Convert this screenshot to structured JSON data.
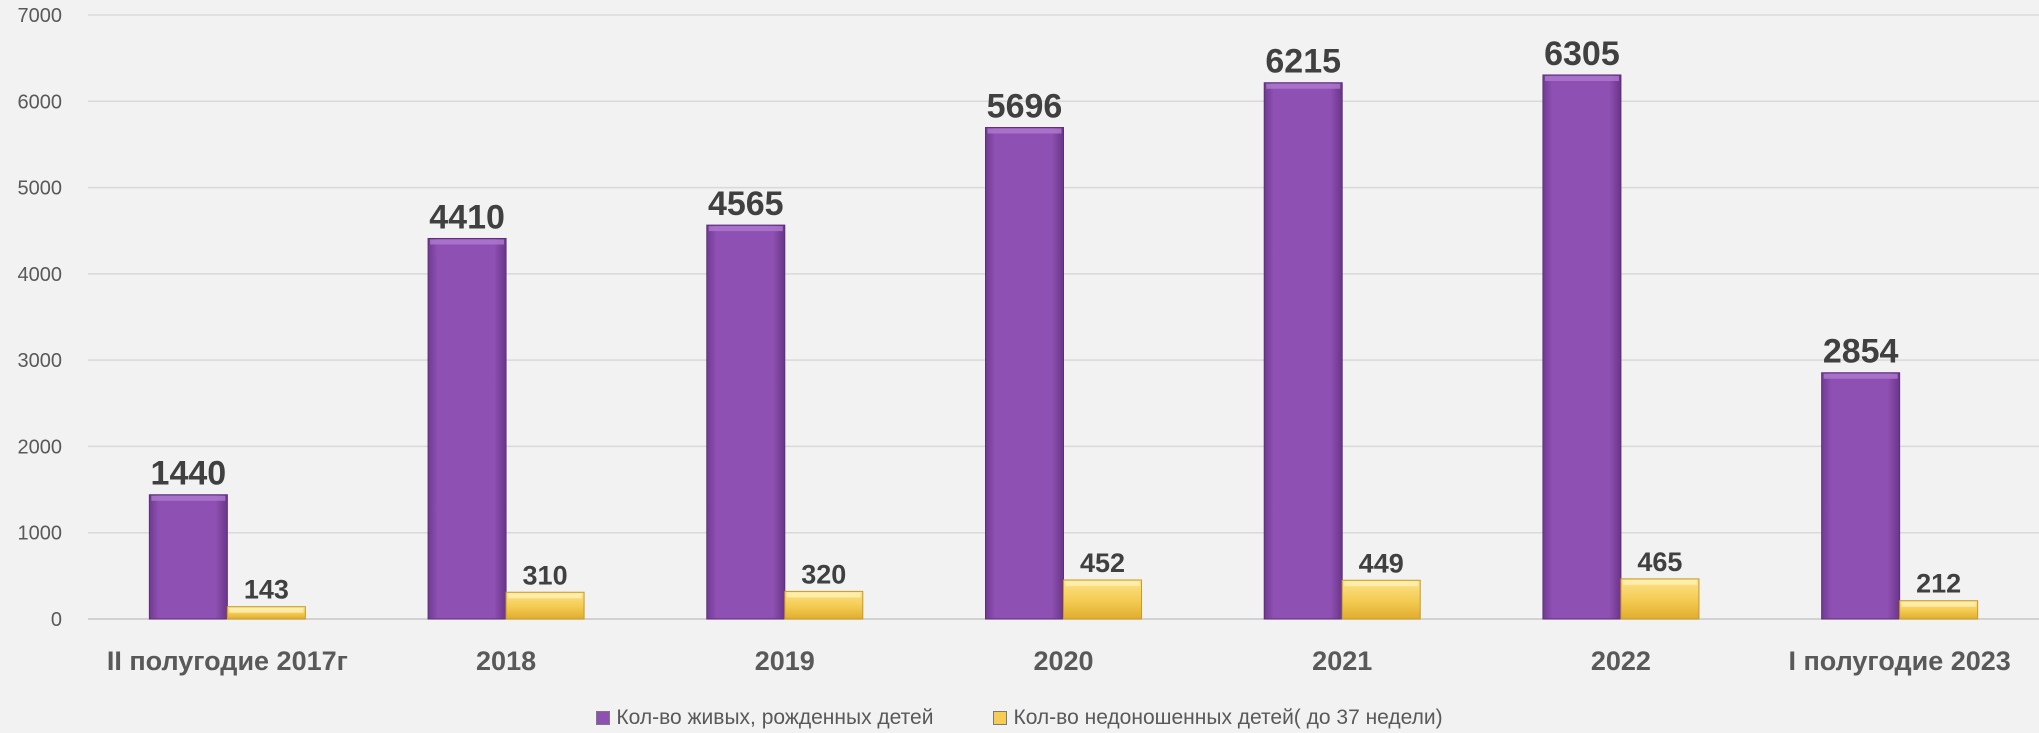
{
  "chart_data": {
    "type": "bar",
    "title": "",
    "xlabel": "",
    "ylabel": "",
    "ylim": [
      0,
      7000
    ],
    "yticks": [
      0,
      1000,
      2000,
      3000,
      4000,
      5000,
      6000,
      7000
    ],
    "grid": true,
    "legend_position": "bottom",
    "categories": [
      "II полугодие 2017г",
      "2018",
      "2019",
      "2020",
      "2021",
      "2022",
      "I полугодие 2023"
    ],
    "series": [
      {
        "name": "Кол-во живых, рожденных детей",
        "color": "#8e50b2",
        "values": [
          1440,
          4410,
          4565,
          5696,
          6215,
          6305,
          2854
        ]
      },
      {
        "name": "Кол-во недоношенных детей( до 37 недели)",
        "color": "#f5cd55",
        "values": [
          143,
          310,
          320,
          452,
          449,
          465,
          212
        ]
      }
    ]
  }
}
